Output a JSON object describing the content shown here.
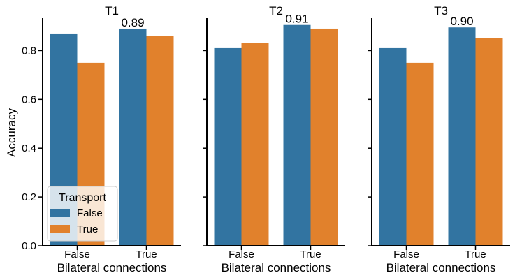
{
  "chart_data": {
    "type": "bar",
    "ylabel": "Accuracy",
    "ylim": [
      0,
      0.95
    ],
    "yticks": [
      0.0,
      0.2,
      0.4,
      0.6,
      0.8
    ],
    "ytick_labels": [
      "0.0",
      "0.2",
      "0.4",
      "0.6",
      "0.8"
    ],
    "legend": {
      "title": "Transport",
      "entries": [
        "False",
        "True"
      ],
      "placement": "lower-left"
    },
    "colors": [
      "#3274a1",
      "#e1812c"
    ],
    "panels": [
      {
        "title": "T1",
        "xlabel": "Bilateral connections",
        "categories": [
          "False",
          "True"
        ],
        "series": [
          {
            "name": "False",
            "values": [
              0.87,
              0.89
            ]
          },
          {
            "name": "True",
            "values": [
              0.75,
              0.86
            ]
          }
        ],
        "annotation": {
          "text": "0.89",
          "category": "True",
          "series": "False"
        }
      },
      {
        "title": "T2",
        "xlabel": "Bilateral connections",
        "categories": [
          "False",
          "True"
        ],
        "series": [
          {
            "name": "False",
            "values": [
              0.81,
              0.905
            ]
          },
          {
            "name": "True",
            "values": [
              0.83,
              0.89
            ]
          }
        ],
        "annotation": {
          "text": "0.91",
          "category": "True",
          "series": "False"
        }
      },
      {
        "title": "T3",
        "xlabel": "Bilateral connections",
        "categories": [
          "False",
          "True"
        ],
        "series": [
          {
            "name": "False",
            "values": [
              0.81,
              0.895
            ]
          },
          {
            "name": "True",
            "values": [
              0.75,
              0.85
            ]
          }
        ],
        "annotation": {
          "text": "0.90",
          "category": "True",
          "series": "False"
        }
      }
    ]
  }
}
